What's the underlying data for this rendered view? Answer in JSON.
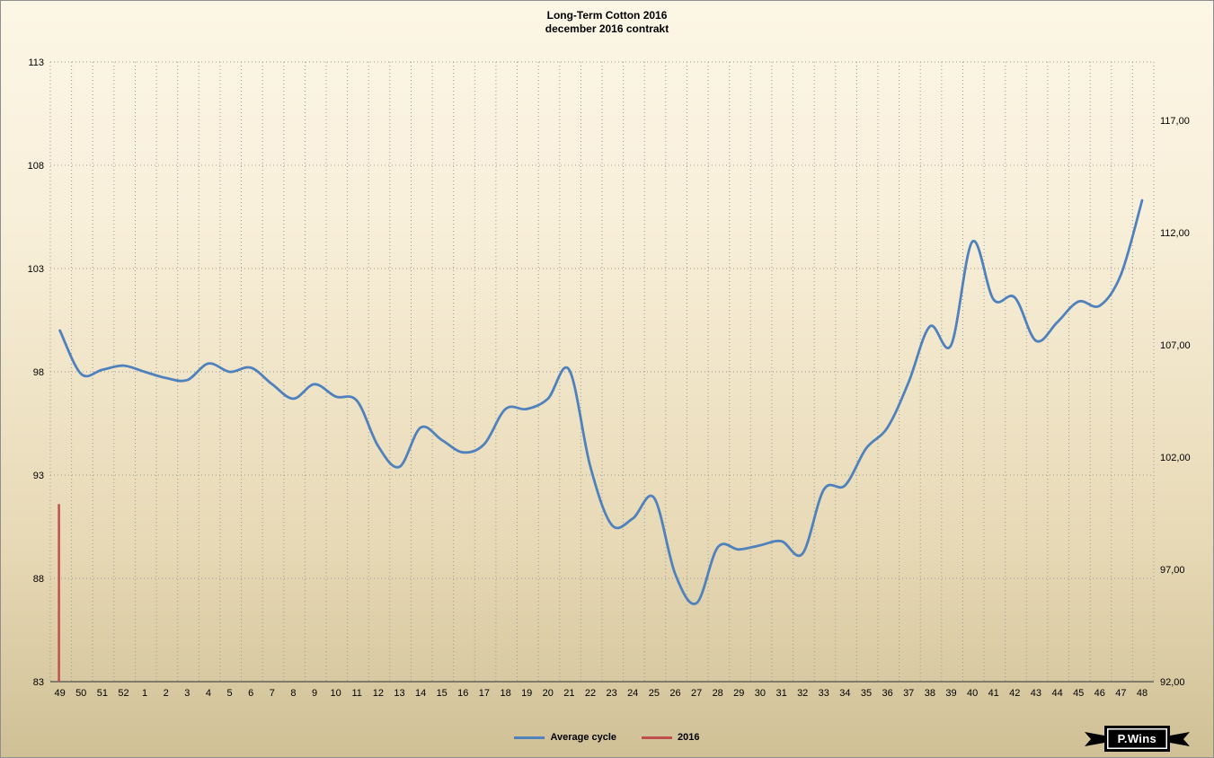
{
  "title": "Long-Term Cotton 2016",
  "subtitle": "december 2016 contrakt",
  "watermark": "P.Wins",
  "legend": [
    {
      "label": "Average cycle",
      "color": "#4f81bd"
    },
    {
      "label": "2016",
      "color": "#c0504d"
    }
  ],
  "colors": {
    "average_cycle": "#4f81bd",
    "series_2016": "#c0504d",
    "grid": "#999999",
    "background_top": "#fcf6e6",
    "background_bottom": "#cfc096"
  },
  "chart_data": {
    "type": "line",
    "title": "Long-Term Cotton 2016",
    "subtitle": "december 2016 contrakt",
    "grid": "dotted",
    "legend_position": "bottom-center",
    "x_labels": [
      "49",
      "50",
      "51",
      "52",
      "1",
      "2",
      "3",
      "4",
      "5",
      "6",
      "7",
      "8",
      "9",
      "10",
      "11",
      "12",
      "13",
      "14",
      "15",
      "16",
      "17",
      "18",
      "19",
      "20",
      "21",
      "22",
      "23",
      "24",
      "25",
      "26",
      "27",
      "28",
      "29",
      "30",
      "31",
      "32",
      "33",
      "34",
      "35",
      "36",
      "37",
      "38",
      "39",
      "40",
      "41",
      "42",
      "43",
      "44",
      "45",
      "46",
      "47",
      "48"
    ],
    "left_axis": {
      "lim": [
        83,
        113
      ],
      "ticks": [
        83,
        88,
        93,
        98,
        103,
        108,
        113
      ]
    },
    "right_axis": {
      "lim": [
        92,
        119.6
      ],
      "ticks": [
        {
          "value": 92,
          "label": "92,00"
        },
        {
          "value": 97,
          "label": "97,00"
        },
        {
          "value": 102,
          "label": "102,00"
        },
        {
          "value": 107,
          "label": "107,00"
        },
        {
          "value": 112,
          "label": "112,00"
        },
        {
          "value": 117,
          "label": "117,00"
        }
      ]
    },
    "series": [
      {
        "name": "Average cycle",
        "color": "#4f81bd",
        "axis": "left",
        "values": [
          100.0,
          97.9,
          98.1,
          98.3,
          98.0,
          97.7,
          97.6,
          98.4,
          98.0,
          98.2,
          97.4,
          96.7,
          97.4,
          96.8,
          96.6,
          94.4,
          93.4,
          95.3,
          94.7,
          94.1,
          94.5,
          96.2,
          96.2,
          96.7,
          98.1,
          93.4,
          90.6,
          90.9,
          91.9,
          88.2,
          86.8,
          89.5,
          89.4,
          89.6,
          89.8,
          89.2,
          92.3,
          92.5,
          94.3,
          95.3,
          97.5,
          100.2,
          99.3,
          104.3,
          101.5,
          101.6,
          99.5,
          100.4,
          101.4,
          101.2,
          102.7,
          106.3
        ]
      },
      {
        "name": "2016",
        "color": "#c0504d",
        "axis": "left",
        "type": "vertical-segment",
        "x_label": "49",
        "y_values": [
          83,
          91.6
        ]
      }
    ]
  }
}
